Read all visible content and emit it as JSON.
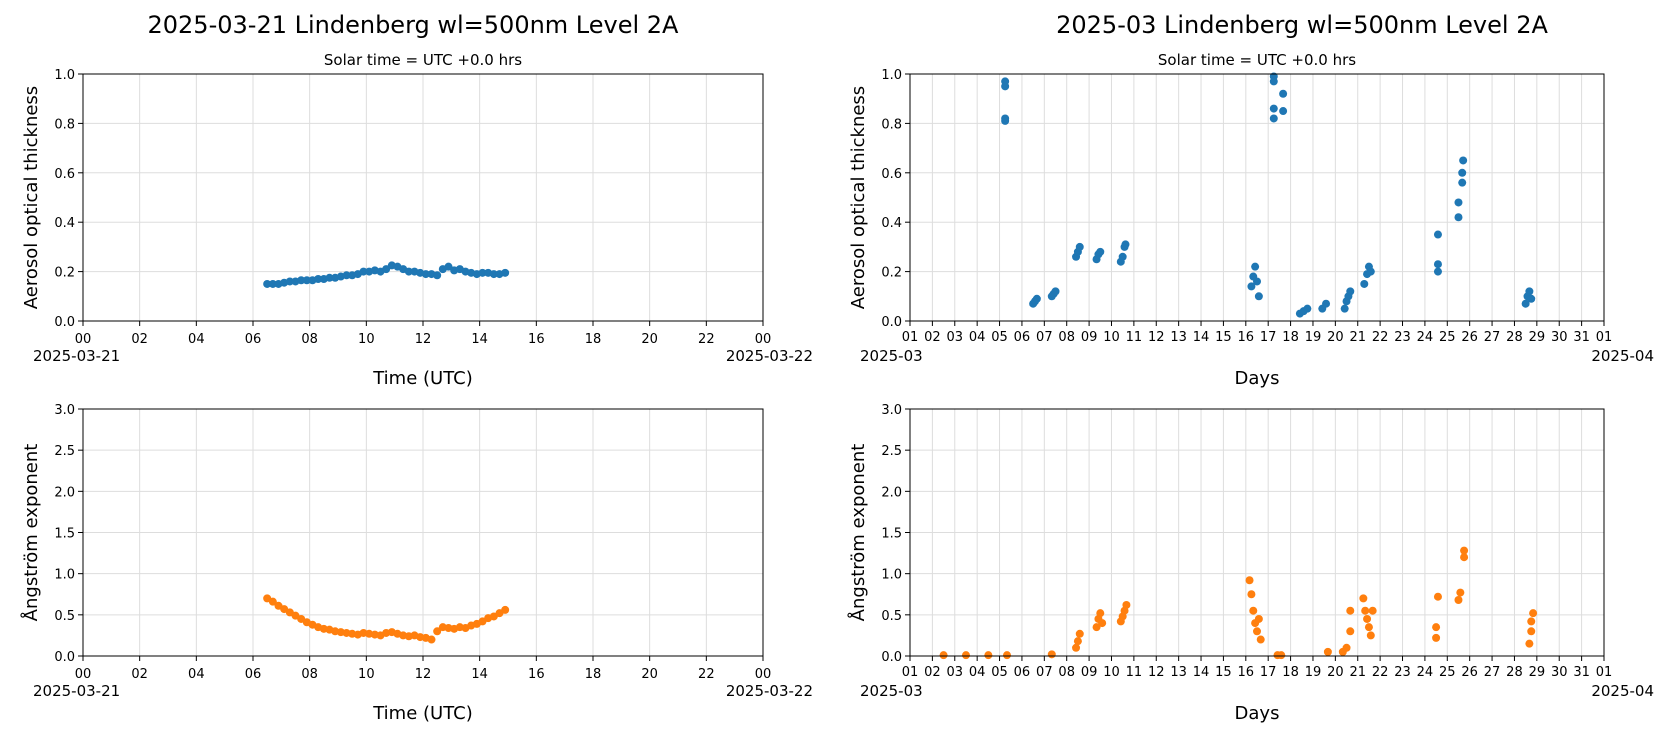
{
  "figure": {
    "left_title": "2025-03-21  Lindenberg  wl=500nm  Level 2A",
    "right_title": "2025-03  Lindenberg  wl=500nm  Level 2A",
    "solar_time_note": "Solar time = UTC +0.0 hrs",
    "colors": {
      "aod": "#1f77b4",
      "angstrom": "#ff7f0e",
      "grid": "#dddddd"
    }
  },
  "chart_data": [
    {
      "id": "daily_aod",
      "type": "scatter",
      "subtitle": "Solar time = UTC +0.0 hrs",
      "xlabel": "Time (UTC)",
      "ylabel": "Aerosol optical thickness",
      "xlim": [
        0,
        24
      ],
      "ylim": [
        0,
        1.0
      ],
      "xtick_labels": [
        "00",
        "02",
        "04",
        "06",
        "08",
        "10",
        "12",
        "14",
        "16",
        "18",
        "20",
        "22",
        "00"
      ],
      "x_date_left": "2025-03-21",
      "x_date_right": "2025-03-22",
      "ytick_labels": [
        "0.0",
        "0.2",
        "0.4",
        "0.6",
        "0.8",
        "1.0"
      ],
      "grid": true,
      "color": "#1f77b4",
      "x": [
        6.5,
        6.7,
        6.9,
        7.1,
        7.3,
        7.5,
        7.7,
        7.9,
        8.1,
        8.3,
        8.5,
        8.7,
        8.9,
        9.1,
        9.3,
        9.5,
        9.7,
        9.9,
        10.1,
        10.3,
        10.5,
        10.7,
        10.9,
        11.1,
        11.3,
        11.5,
        11.7,
        11.9,
        12.1,
        12.3,
        12.5,
        12.7,
        12.9,
        13.1,
        13.3,
        13.5,
        13.7,
        13.9,
        14.1,
        14.3,
        14.5,
        14.7,
        14.9
      ],
      "y": [
        0.15,
        0.15,
        0.15,
        0.155,
        0.16,
        0.16,
        0.165,
        0.165,
        0.165,
        0.17,
        0.17,
        0.175,
        0.175,
        0.18,
        0.185,
        0.185,
        0.19,
        0.2,
        0.2,
        0.205,
        0.2,
        0.21,
        0.225,
        0.22,
        0.21,
        0.2,
        0.2,
        0.195,
        0.19,
        0.19,
        0.185,
        0.21,
        0.22,
        0.205,
        0.21,
        0.2,
        0.195,
        0.19,
        0.195,
        0.195,
        0.19,
        0.19,
        0.195
      ]
    },
    {
      "id": "monthly_aod",
      "type": "scatter",
      "subtitle": "Solar time = UTC +0.0 hrs",
      "xlabel": "Days",
      "ylabel": "Aerosol optical thickness",
      "xlim": [
        "2025-03-01",
        "2025-04-01"
      ],
      "ylim": [
        0,
        1.0
      ],
      "xtick_labels": [
        "01",
        "02",
        "03",
        "04",
        "05",
        "06",
        "07",
        "08",
        "09",
        "10",
        "11",
        "12",
        "13",
        "14",
        "15",
        "16",
        "17",
        "18",
        "19",
        "20",
        "21",
        "22",
        "23",
        "24",
        "25",
        "26",
        "27",
        "28",
        "29",
        "30",
        "31",
        "01"
      ],
      "x_date_left": "2025-03",
      "x_date_right": "2025-04",
      "ytick_labels": [
        "0.0",
        "0.2",
        "0.4",
        "0.6",
        "0.8",
        "1.0"
      ],
      "grid": true,
      "color": "#1f77b4",
      "x": [
        "2025-03-05 06:00",
        "2025-03-05 06:00",
        "2025-03-05 06:00",
        "2025-03-05 06:00",
        "2025-03-06 12:00",
        "2025-03-06 14:00",
        "2025-03-06 16:00",
        "2025-03-07 08:00",
        "2025-03-07 10:00",
        "2025-03-07 12:00",
        "2025-03-08 10:00",
        "2025-03-08 12:00",
        "2025-03-08 14:00",
        "2025-03-09 08:00",
        "2025-03-09 10:00",
        "2025-03-09 12:00",
        "2025-03-10 10:00",
        "2025-03-10 12:00",
        "2025-03-10 14:00",
        "2025-03-10 15:00",
        "2025-03-16 06:00",
        "2025-03-16 08:00",
        "2025-03-16 10:00",
        "2025-03-16 12:00",
        "2025-03-16 14:00",
        "2025-03-17 06:00",
        "2025-03-17 06:00",
        "2025-03-17 06:00",
        "2025-03-17 06:00",
        "2025-03-17 16:00",
        "2025-03-17 16:00",
        "2025-03-18 10:00",
        "2025-03-18 14:00",
        "2025-03-18 18:00",
        "2025-03-19 10:00",
        "2025-03-19 14:00",
        "2025-03-20 10:00",
        "2025-03-20 12:00",
        "2025-03-20 14:00",
        "2025-03-20 16:00",
        "2025-03-21 07:00",
        "2025-03-21 10:00",
        "2025-03-21 12:00",
        "2025-03-21 14:00",
        "2025-03-24 14:00",
        "2025-03-24 14:00",
        "2025-03-24 14:00",
        "2025-03-25 12:00",
        "2025-03-25 12:00",
        "2025-03-25 16:00",
        "2025-03-25 16:00",
        "2025-03-25 17:00",
        "2025-03-28 12:00",
        "2025-03-28 14:00",
        "2025-03-28 16:00",
        "2025-03-28 18:00"
      ],
      "y": [
        0.95,
        0.97,
        0.81,
        0.82,
        0.07,
        0.08,
        0.09,
        0.1,
        0.11,
        0.12,
        0.26,
        0.28,
        0.3,
        0.25,
        0.27,
        0.28,
        0.24,
        0.26,
        0.3,
        0.31,
        0.14,
        0.18,
        0.22,
        0.16,
        0.1,
        0.82,
        0.86,
        0.97,
        0.99,
        0.85,
        0.92,
        0.03,
        0.04,
        0.05,
        0.05,
        0.07,
        0.05,
        0.08,
        0.1,
        0.12,
        0.15,
        0.19,
        0.22,
        0.2,
        0.2,
        0.23,
        0.35,
        0.42,
        0.48,
        0.56,
        0.6,
        0.65,
        0.07,
        0.1,
        0.12,
        0.09
      ]
    },
    {
      "id": "daily_angstrom",
      "type": "scatter",
      "xlabel": "Time (UTC)",
      "ylabel": "Ångström exponent",
      "xlim": [
        0,
        24
      ],
      "ylim": [
        0,
        3.0
      ],
      "xtick_labels": [
        "00",
        "02",
        "04",
        "06",
        "08",
        "10",
        "12",
        "14",
        "16",
        "18",
        "20",
        "22",
        "00"
      ],
      "x_date_left": "2025-03-21",
      "x_date_right": "2025-03-22",
      "ytick_labels": [
        "0.0",
        "0.5",
        "1.0",
        "1.5",
        "2.0",
        "2.5",
        "3.0"
      ],
      "grid": true,
      "color": "#ff7f0e",
      "x": [
        6.5,
        6.7,
        6.9,
        7.1,
        7.3,
        7.5,
        7.7,
        7.9,
        8.1,
        8.3,
        8.5,
        8.7,
        8.9,
        9.1,
        9.3,
        9.5,
        9.7,
        9.9,
        10.1,
        10.3,
        10.5,
        10.7,
        10.9,
        11.1,
        11.3,
        11.5,
        11.7,
        11.9,
        12.1,
        12.3,
        12.5,
        12.7,
        12.9,
        13.1,
        13.3,
        13.5,
        13.7,
        13.9,
        14.1,
        14.3,
        14.5,
        14.7,
        14.9
      ],
      "y": [
        0.7,
        0.66,
        0.61,
        0.57,
        0.53,
        0.49,
        0.45,
        0.41,
        0.38,
        0.35,
        0.33,
        0.32,
        0.3,
        0.29,
        0.28,
        0.27,
        0.26,
        0.28,
        0.27,
        0.26,
        0.25,
        0.28,
        0.29,
        0.27,
        0.25,
        0.24,
        0.25,
        0.23,
        0.22,
        0.2,
        0.3,
        0.35,
        0.34,
        0.33,
        0.35,
        0.34,
        0.37,
        0.39,
        0.42,
        0.46,
        0.48,
        0.52,
        0.56
      ]
    },
    {
      "id": "monthly_angstrom",
      "type": "scatter",
      "xlabel": "Days",
      "ylabel": "Ångström exponent",
      "xlim": [
        "2025-03-01",
        "2025-04-01"
      ],
      "ylim": [
        0,
        3.0
      ],
      "xtick_labels": [
        "01",
        "02",
        "03",
        "04",
        "05",
        "06",
        "07",
        "08",
        "09",
        "10",
        "11",
        "12",
        "13",
        "14",
        "15",
        "16",
        "17",
        "18",
        "19",
        "20",
        "21",
        "22",
        "23",
        "24",
        "25",
        "26",
        "27",
        "28",
        "29",
        "30",
        "31",
        "01"
      ],
      "x_date_left": "2025-03",
      "x_date_right": "2025-04",
      "ytick_labels": [
        "0.0",
        "0.5",
        "1.0",
        "1.5",
        "2.0",
        "2.5",
        "3.0"
      ],
      "grid": true,
      "color": "#ff7f0e",
      "x": [
        "2025-03-02 12:00",
        "2025-03-03 12:00",
        "2025-03-04 12:00",
        "2025-03-05 08:00",
        "2025-03-07 08:00",
        "2025-03-08 10:00",
        "2025-03-08 12:00",
        "2025-03-08 14:00",
        "2025-03-09 08:00",
        "2025-03-09 10:00",
        "2025-03-09 12:00",
        "2025-03-09 14:00",
        "2025-03-10 10:00",
        "2025-03-10 12:00",
        "2025-03-10 14:00",
        "2025-03-10 16:00",
        "2025-03-16 04:00",
        "2025-03-16 06:00",
        "2025-03-16 08:00",
        "2025-03-16 10:00",
        "2025-03-16 12:00",
        "2025-03-16 14:00",
        "2025-03-16 16:00",
        "2025-03-17 10:00",
        "2025-03-17 14:00",
        "2025-03-19 16:00",
        "2025-03-20 08:00",
        "2025-03-20 12:00",
        "2025-03-20 16:00",
        "2025-03-20 16:00",
        "2025-03-21 06:00",
        "2025-03-21 08:00",
        "2025-03-21 10:00",
        "2025-03-21 12:00",
        "2025-03-21 14:00",
        "2025-03-21 16:00",
        "2025-03-24 12:00",
        "2025-03-24 12:00",
        "2025-03-24 14:00",
        "2025-03-25 12:00",
        "2025-03-25 14:00",
        "2025-03-25 18:00",
        "2025-03-25 18:00",
        "2025-03-28 16:00",
        "2025-03-28 18:00",
        "2025-03-28 18:00",
        "2025-03-28 20:00"
      ],
      "y": [
        0.01,
        0.01,
        0.01,
        0.01,
        0.02,
        0.1,
        0.18,
        0.27,
        0.35,
        0.45,
        0.52,
        0.4,
        0.42,
        0.48,
        0.55,
        0.62,
        0.92,
        0.75,
        0.55,
        0.4,
        0.3,
        0.45,
        0.2,
        0.01,
        0.01,
        0.05,
        0.05,
        0.1,
        0.3,
        0.55,
        0.7,
        0.55,
        0.45,
        0.35,
        0.25,
        0.55,
        0.22,
        0.35,
        0.72,
        0.68,
        0.77,
        1.2,
        1.28,
        0.15,
        0.3,
        0.42,
        0.52
      ]
    }
  ]
}
